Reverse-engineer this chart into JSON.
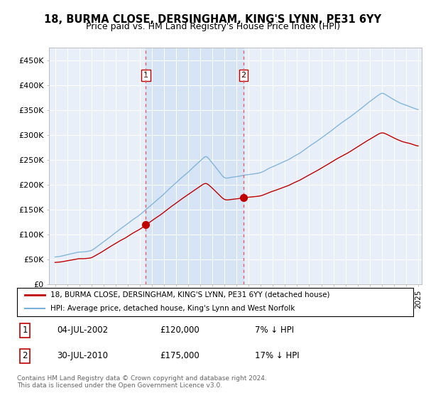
{
  "title": "18, BURMA CLOSE, DERSINGHAM, KING'S LYNN, PE31 6YY",
  "subtitle": "Price paid vs. HM Land Registry's House Price Index (HPI)",
  "ylabel_ticks": [
    "£0",
    "£50K",
    "£100K",
    "£150K",
    "£200K",
    "£250K",
    "£300K",
    "£350K",
    "£400K",
    "£450K"
  ],
  "ytick_values": [
    0,
    50000,
    100000,
    150000,
    200000,
    250000,
    300000,
    350000,
    400000,
    450000
  ],
  "ylim": [
    0,
    475000
  ],
  "legend_line1": "18, BURMA CLOSE, DERSINGHAM, KING'S LYNN, PE31 6YY (detached house)",
  "legend_line2": "HPI: Average price, detached house, King's Lynn and West Norfolk",
  "annotation1_date": "04-JUL-2002",
  "annotation1_price": "£120,000",
  "annotation1_hpi": "7% ↓ HPI",
  "annotation2_date": "30-JUL-2010",
  "annotation2_price": "£175,000",
  "annotation2_hpi": "17% ↓ HPI",
  "footer": "Contains HM Land Registry data © Crown copyright and database right 2024.\nThis data is licensed under the Open Government Licence v3.0.",
  "hpi_color": "#7ab0d8",
  "price_color": "#c00000",
  "vline_color": "#e06060",
  "shade_color": "#d6e4f5",
  "background_color": "#e8eff8",
  "sale1_year": 2002.5,
  "sale2_year": 2010.58,
  "sale1_price": 120000,
  "sale2_price": 175000,
  "xlim_left": 1994.5,
  "xlim_right": 2025.3
}
